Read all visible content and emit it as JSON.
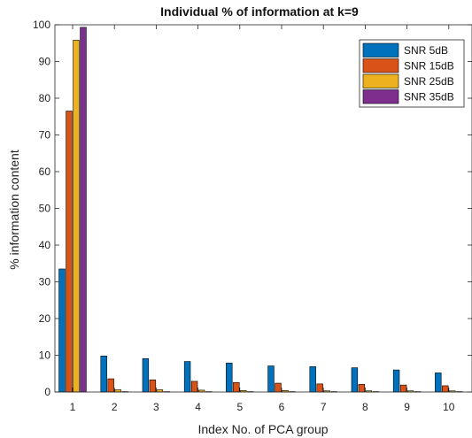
{
  "chart_data": {
    "type": "bar",
    "title": "Individual % of information at k=9",
    "xlabel": "Index No. of PCA group",
    "ylabel": "% information content",
    "ylim": [
      0,
      100
    ],
    "yticks": [
      0,
      10,
      20,
      30,
      40,
      50,
      60,
      70,
      80,
      90,
      100
    ],
    "categories": [
      "1",
      "2",
      "3",
      "4",
      "5",
      "6",
      "7",
      "8",
      "9",
      "10"
    ],
    "legend_position": "top-right",
    "grid": false,
    "series": [
      {
        "name": "SNR 5dB",
        "color": "#0072BD",
        "values": [
          33.5,
          9.8,
          9.1,
          8.3,
          7.9,
          7.1,
          6.9,
          6.6,
          6.0,
          5.2
        ]
      },
      {
        "name": "SNR 15dB",
        "color": "#D95319",
        "values": [
          76.5,
          3.6,
          3.3,
          2.9,
          2.6,
          2.4,
          2.2,
          2.1,
          1.9,
          1.7
        ]
      },
      {
        "name": "SNR 25dB",
        "color": "#EDB120",
        "values": [
          95.8,
          0.6,
          0.6,
          0.5,
          0.4,
          0.4,
          0.3,
          0.3,
          0.3,
          0.3
        ]
      },
      {
        "name": "SNR 35dB",
        "color": "#7E2F8E",
        "values": [
          99.3,
          0.1,
          0.1,
          0.1,
          0.1,
          0.1,
          0.1,
          0.1,
          0.1,
          0.1
        ]
      }
    ]
  }
}
